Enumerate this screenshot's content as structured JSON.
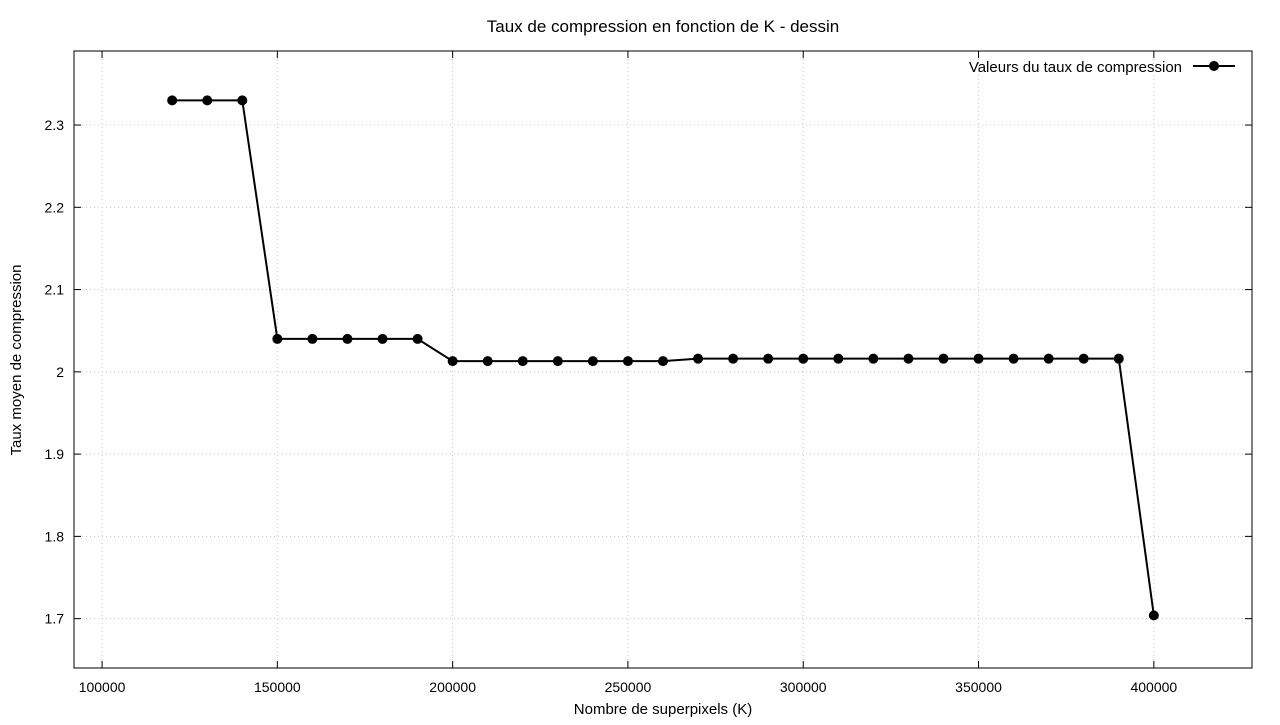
{
  "chart_data": {
    "type": "line",
    "title": "Taux de compression en fonction de K - dessin",
    "xlabel": "Nombre de superpixels (K)",
    "ylabel": "Taux moyen de compression",
    "xlim": [
      92000,
      428000
    ],
    "ylim": [
      1.64,
      2.39
    ],
    "xticks": [
      100000,
      150000,
      200000,
      250000,
      300000,
      350000,
      400000
    ],
    "yticks": [
      1.7,
      1.8,
      1.9,
      2,
      2.1,
      2.2,
      2.3
    ],
    "xtick_labels": [
      "100000",
      "150000",
      "200000",
      "250000",
      "300000",
      "350000",
      "400000"
    ],
    "ytick_labels": [
      "1.7",
      "1.8",
      "1.9",
      "2",
      "2.1",
      "2.2",
      "2.3"
    ],
    "grid": true,
    "legend_position": "top-right",
    "series": [
      {
        "name": "Valeurs du taux de compression",
        "color": "#000000",
        "marker": "circle",
        "x": [
          120000,
          130000,
          140000,
          150000,
          160000,
          170000,
          180000,
          190000,
          200000,
          210000,
          220000,
          230000,
          240000,
          250000,
          260000,
          270000,
          280000,
          290000,
          300000,
          310000,
          320000,
          330000,
          340000,
          350000,
          360000,
          370000,
          380000,
          390000,
          400000
        ],
        "y": [
          2.33,
          2.33,
          2.33,
          2.04,
          2.04,
          2.04,
          2.04,
          2.04,
          2.013,
          2.013,
          2.013,
          2.013,
          2.013,
          2.013,
          2.013,
          2.016,
          2.016,
          2.016,
          2.016,
          2.016,
          2.016,
          2.016,
          2.016,
          2.016,
          2.016,
          2.016,
          2.016,
          2.016,
          1.704
        ]
      }
    ]
  }
}
